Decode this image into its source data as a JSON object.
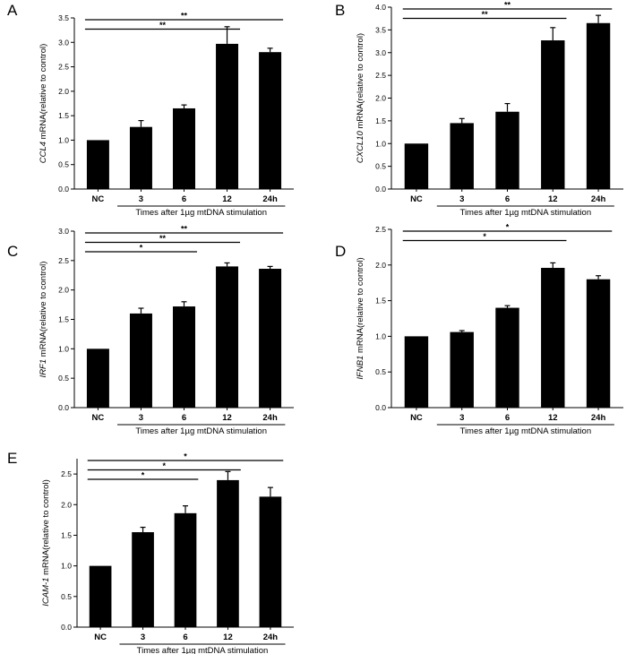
{
  "chart_data": [
    {
      "panel": "A",
      "type": "bar",
      "gene": "CCL4",
      "ylabel_suffix": " mRNA(relative to control)",
      "xlabel": "Times after 1µg mtDNA stimulation",
      "categories": [
        "NC",
        "3",
        "6",
        "12",
        "24h"
      ],
      "values": [
        1.0,
        1.27,
        1.65,
        2.97,
        2.8
      ],
      "errors": [
        0.0,
        0.13,
        0.07,
        0.35,
        0.08
      ],
      "ylim": [
        0.0,
        3.5
      ],
      "yticks": [
        "0.0",
        "0.5",
        "1.0",
        "1.5",
        "2.0",
        "2.5",
        "3.0",
        "3.5"
      ],
      "significance": [
        {
          "from": 0,
          "to": 3,
          "label": "**"
        },
        {
          "from": 0,
          "to": 4,
          "label": "**"
        }
      ]
    },
    {
      "panel": "B",
      "type": "bar",
      "gene": "CXCL10",
      "ylabel_suffix": " mRNA(relative to control)",
      "xlabel": "Times after 1µg mtDNA stimulation",
      "categories": [
        "NC",
        "3",
        "6",
        "12",
        "24h"
      ],
      "values": [
        1.0,
        1.45,
        1.7,
        3.27,
        3.65
      ],
      "errors": [
        0.0,
        0.1,
        0.18,
        0.28,
        0.17
      ],
      "ylim": [
        0.0,
        4.0
      ],
      "yticks": [
        "0.0",
        "0.5",
        "1.0",
        "1.5",
        "2.0",
        "2.5",
        "3.0",
        "3.5",
        "4.0"
      ],
      "significance": [
        {
          "from": 0,
          "to": 3,
          "label": "**"
        },
        {
          "from": 0,
          "to": 4,
          "label": "**"
        }
      ]
    },
    {
      "panel": "C",
      "type": "bar",
      "gene": "IRF1",
      "ylabel_suffix": " mRNA(relative to control)",
      "xlabel": "Times after 1µg mtDNA stimulation",
      "categories": [
        "NC",
        "3",
        "6",
        "12",
        "24h"
      ],
      "values": [
        1.0,
        1.6,
        1.72,
        2.4,
        2.36
      ],
      "errors": [
        0.0,
        0.09,
        0.08,
        0.06,
        0.04
      ],
      "ylim": [
        0.0,
        3.0
      ],
      "yticks": [
        "0.0",
        "0.5",
        "1.0",
        "1.5",
        "2.0",
        "2.5",
        "3.0"
      ],
      "significance": [
        {
          "from": 0,
          "to": 2,
          "label": "*"
        },
        {
          "from": 0,
          "to": 3,
          "label": "**"
        },
        {
          "from": 0,
          "to": 4,
          "label": "**"
        }
      ]
    },
    {
      "panel": "D",
      "type": "bar",
      "gene": "IFNB1",
      "ylabel_suffix": " mRNA(relative to control)",
      "xlabel": "Times after 1µg mtDNA stimulation",
      "categories": [
        "NC",
        "3",
        "6",
        "12",
        "24h"
      ],
      "values": [
        1.0,
        1.06,
        1.4,
        1.96,
        1.8
      ],
      "errors": [
        0.0,
        0.02,
        0.03,
        0.07,
        0.05
      ],
      "ylim": [
        0.0,
        2.5
      ],
      "yticks": [
        "0.0",
        "0.5",
        "1.0",
        "1.5",
        "2.0",
        "2.5"
      ],
      "significance": [
        {
          "from": 0,
          "to": 3,
          "label": "*"
        },
        {
          "from": 0,
          "to": 4,
          "label": "*"
        }
      ]
    },
    {
      "panel": "E",
      "type": "bar",
      "gene": "ICAM-1",
      "ylabel_suffix": " mRNA(relative to control)",
      "xlabel": "Times after 1µg mtDNA stimulation",
      "categories": [
        "NC",
        "3",
        "6",
        "12",
        "24h"
      ],
      "values": [
        1.0,
        1.55,
        1.86,
        2.4,
        2.13
      ],
      "errors": [
        0.0,
        0.08,
        0.12,
        0.14,
        0.15
      ],
      "ylim": [
        0.0,
        2.75
      ],
      "yticks": [
        "0.0",
        "0.5",
        "1.0",
        "1.5",
        "2.0",
        "2.5"
      ],
      "significance": [
        {
          "from": 0,
          "to": 2,
          "label": "*"
        },
        {
          "from": 0,
          "to": 3,
          "label": "*"
        },
        {
          "from": 0,
          "to": 4,
          "label": "*"
        }
      ]
    }
  ],
  "colors": {
    "bar": "#000000",
    "axis": "#000000",
    "background": "#ffffff"
  }
}
